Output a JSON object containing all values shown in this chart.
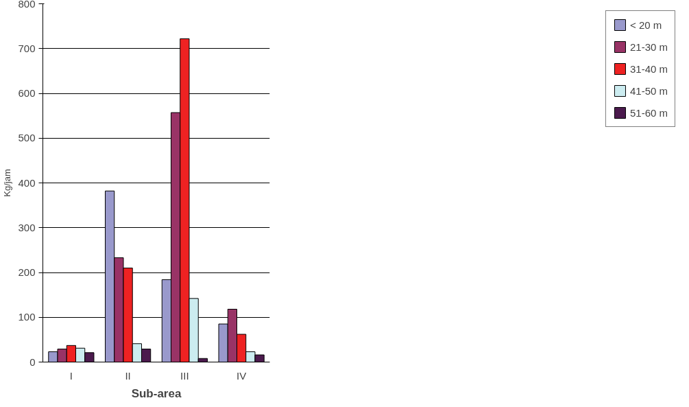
{
  "chart_data": {
    "type": "bar",
    "xlabel": "Sub-area",
    "ylabel": "Kg/jam",
    "categories": [
      "I",
      "II",
      "III",
      "IV"
    ],
    "series": [
      {
        "name": "< 20 m",
        "color": "#9999cc",
        "values": [
          23,
          382,
          184,
          85
        ]
      },
      {
        "name": "21-30 m",
        "color": "#993366",
        "values": [
          29,
          233,
          557,
          118
        ]
      },
      {
        "name": "31-40 m",
        "color": "#ee2222",
        "values": [
          37,
          210,
          722,
          62
        ]
      },
      {
        "name": "41-50 m",
        "color": "#ccecf0",
        "values": [
          31,
          41,
          142,
          23
        ]
      },
      {
        "name": "51-60 m",
        "color": "#4b1a4d",
        "values": [
          21,
          29,
          8,
          16
        ]
      }
    ],
    "ylim": [
      0,
      800
    ],
    "yticks": [
      0,
      100,
      200,
      300,
      400,
      500,
      600,
      700,
      800
    ],
    "grid": "y",
    "legend": "right"
  }
}
